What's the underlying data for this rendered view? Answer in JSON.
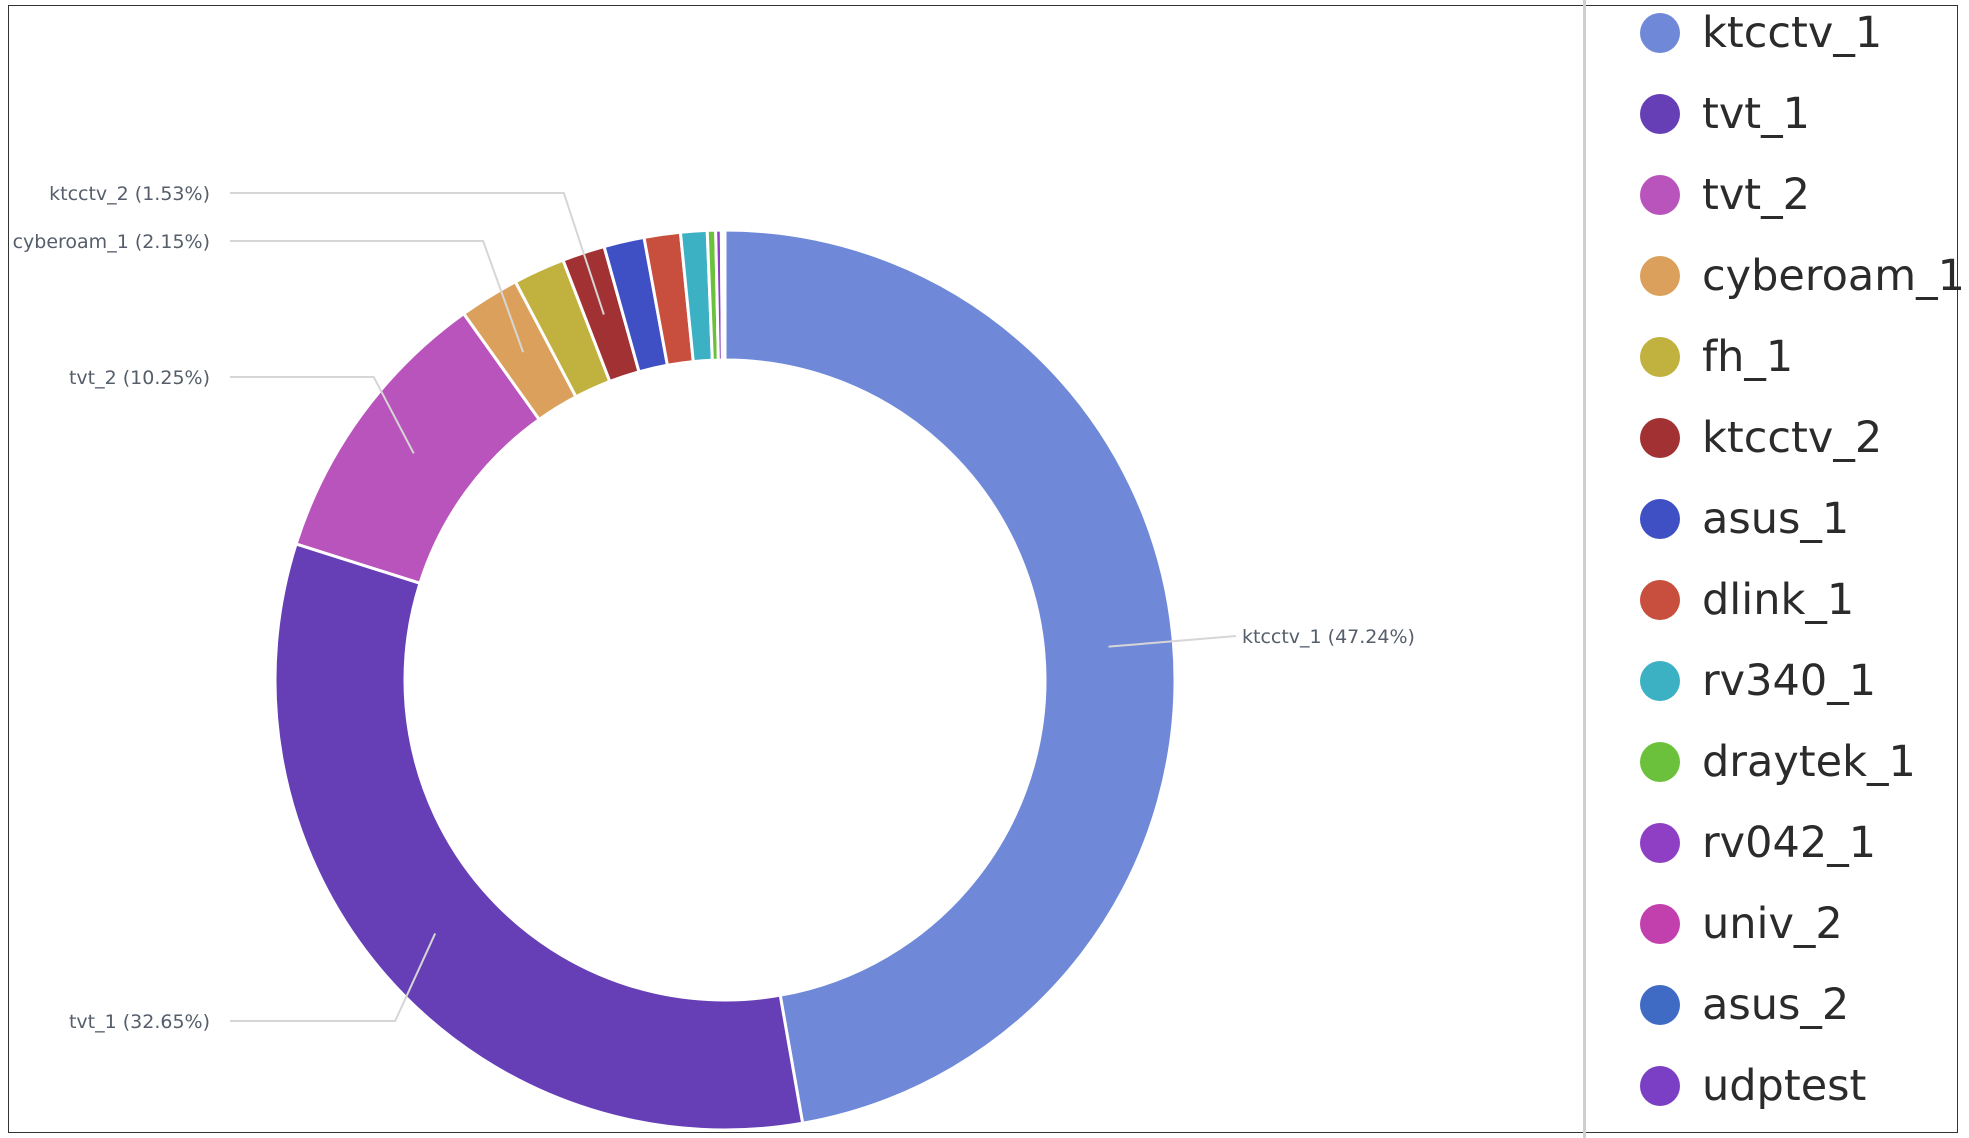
{
  "chart_data": {
    "type": "pie",
    "donut": true,
    "legend_position": "right",
    "slices": [
      {
        "label": "ktcctv_1",
        "value": 47.24,
        "color": "#6f89d8"
      },
      {
        "label": "tvt_1",
        "value": 32.65,
        "color": "#663fb7"
      },
      {
        "label": "tvt_2",
        "value": 10.25,
        "color": "#b954bc"
      },
      {
        "label": "cyberoam_1",
        "value": 2.15,
        "color": "#dba15c"
      },
      {
        "label": "fh_1",
        "value": 1.85,
        "color": "#c1b13e"
      },
      {
        "label": "ktcctv_2",
        "value": 1.53,
        "color": "#a13132"
      },
      {
        "label": "asus_1",
        "value": 1.45,
        "color": "#3f4fc4"
      },
      {
        "label": "dlink_1",
        "value": 1.3,
        "color": "#c84e3e"
      },
      {
        "label": "rv340_1",
        "value": 0.95,
        "color": "#3cb1c3"
      },
      {
        "label": "draytek_1",
        "value": 0.3,
        "color": "#6bc13b"
      },
      {
        "label": "rv042_1",
        "value": 0.2,
        "color": "#8e3fc4"
      },
      {
        "label": "univ_2",
        "value": 0.05,
        "color": "#c23fae"
      },
      {
        "label": "asus_2",
        "value": 0.05,
        "color": "#3f6bc4"
      },
      {
        "label": "udptest",
        "value": 0.03,
        "color": "#7a3fc4"
      }
    ],
    "data_labels": [
      {
        "slice": "ktcctv_1",
        "text": "ktcctv_1 (47.24%)"
      },
      {
        "slice": "tvt_1",
        "text": "tvt_1 (32.65%)"
      },
      {
        "slice": "tvt_2",
        "text": "tvt_2 (10.25%)"
      },
      {
        "slice": "cyberoam_1",
        "text": "cyberoam_1 (2.15%)"
      },
      {
        "slice": "ktcctv_2",
        "text": "ktcctv_2 (1.53%)"
      }
    ]
  }
}
